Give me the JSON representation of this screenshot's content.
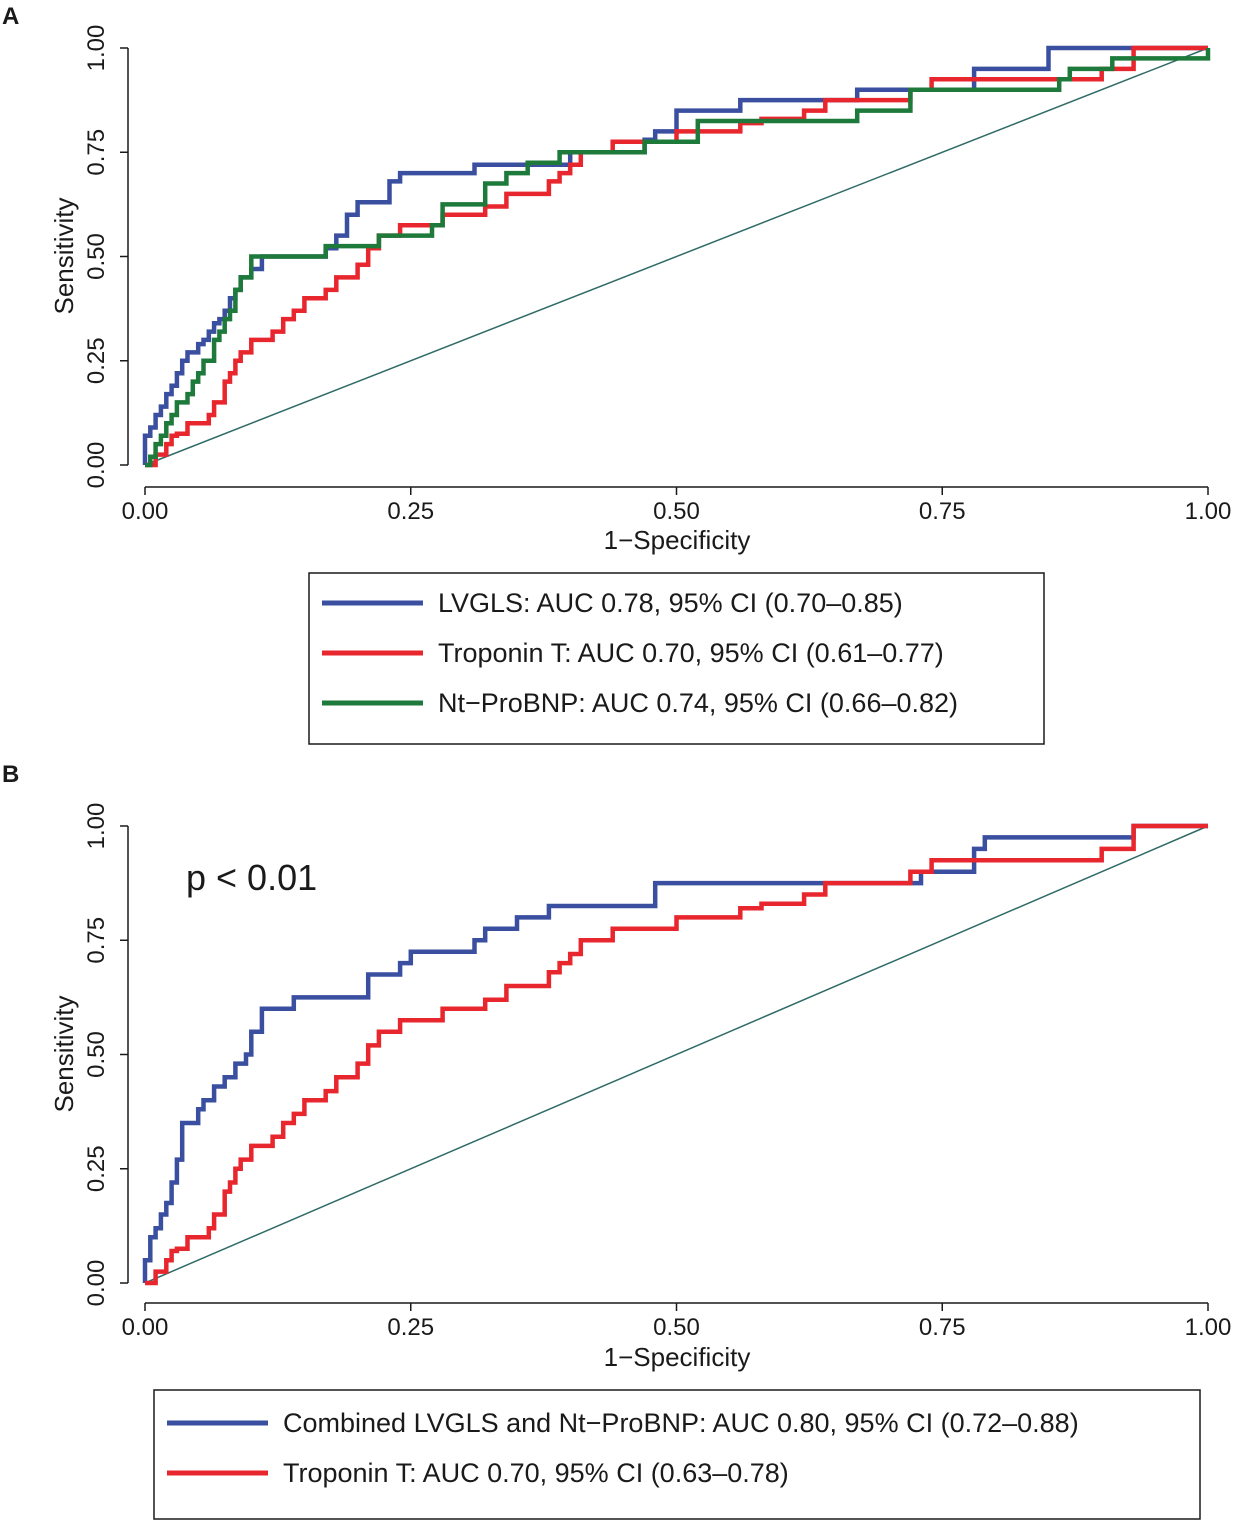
{
  "colors": {
    "blue": "#3a4fa0",
    "red": "#e8262d",
    "green": "#1d7a3a",
    "diagonal": "#2f6b67",
    "axis": "#1a1a1a"
  },
  "chart_data": [
    {
      "type": "line",
      "panel_label": "A",
      "title": "",
      "xlabel": "1−Specificity",
      "ylabel": "Sensitivity",
      "xlim": [
        0,
        1
      ],
      "ylim": [
        0,
        1
      ],
      "xticks": [
        "0.00",
        "0.25",
        "0.50",
        "0.75",
        "1.00"
      ],
      "yticks": [
        "0.00",
        "0.25",
        "0.50",
        "0.75",
        "1.00"
      ],
      "xtick_values": [
        0,
        0.25,
        0.5,
        0.75,
        1
      ],
      "ytick_values": [
        0,
        0.25,
        0.5,
        0.75,
        1
      ],
      "annotation": "",
      "legend_position": "below",
      "reference_line": [
        [
          0,
          0
        ],
        [
          1,
          1
        ]
      ],
      "series": [
        {
          "name": "LVGLS: AUC 0.78, 95% CI (0.70–0.85)",
          "color_key": "blue",
          "x": [
            0,
            0,
            0.005,
            0.005,
            0.01,
            0.015,
            0.02,
            0.025,
            0.03,
            0.035,
            0.04,
            0.045,
            0.05,
            0.055,
            0.06,
            0.065,
            0.07,
            0.075,
            0.08,
            0.085,
            0.09,
            0.1,
            0.11,
            0.12,
            0.17,
            0.18,
            0.19,
            0.2,
            0.21,
            0.23,
            0.24,
            0.3,
            0.31,
            0.38,
            0.4,
            0.47,
            0.48,
            0.5,
            0.54,
            0.56,
            0.66,
            0.67,
            0.76,
            0.78,
            0.85,
            0.85,
            0.9,
            1
          ],
          "y": [
            0,
            0.07,
            0.07,
            0.09,
            0.12,
            0.14,
            0.17,
            0.19,
            0.22,
            0.25,
            0.27,
            0.27,
            0.29,
            0.3,
            0.32,
            0.34,
            0.35,
            0.37,
            0.4,
            0.42,
            0.45,
            0.47,
            0.5,
            0.5,
            0.52,
            0.55,
            0.6,
            0.63,
            0.63,
            0.68,
            0.7,
            0.7,
            0.72,
            0.72,
            0.75,
            0.78,
            0.8,
            0.85,
            0.85,
            0.875,
            0.875,
            0.9,
            0.9,
            0.95,
            0.98,
            1,
            1,
            1
          ]
        },
        {
          "name": "Troponin T: AUC 0.70, 95% CI (0.61–0.77)",
          "color_key": "red",
          "x": [
            0,
            0.01,
            0.02,
            0.025,
            0.03,
            0.04,
            0.05,
            0.06,
            0.065,
            0.07,
            0.075,
            0.08,
            0.085,
            0.09,
            0.1,
            0.11,
            0.12,
            0.13,
            0.14,
            0.15,
            0.16,
            0.17,
            0.18,
            0.19,
            0.2,
            0.21,
            0.22,
            0.24,
            0.26,
            0.28,
            0.3,
            0.32,
            0.34,
            0.37,
            0.38,
            0.39,
            0.4,
            0.41,
            0.42,
            0.44,
            0.46,
            0.5,
            0.52,
            0.56,
            0.58,
            0.62,
            0.64,
            0.68,
            0.72,
            0.74,
            0.76,
            0.8,
            0.84,
            0.9,
            0.93,
            1
          ],
          "y": [
            0,
            0.025,
            0.05,
            0.07,
            0.075,
            0.1,
            0.1,
            0.12,
            0.15,
            0.15,
            0.2,
            0.22,
            0.25,
            0.27,
            0.3,
            0.3,
            0.32,
            0.35,
            0.37,
            0.4,
            0.4,
            0.42,
            0.45,
            0.45,
            0.48,
            0.52,
            0.55,
            0.575,
            0.575,
            0.6,
            0.6,
            0.62,
            0.65,
            0.65,
            0.68,
            0.7,
            0.72,
            0.75,
            0.75,
            0.775,
            0.775,
            0.8,
            0.8,
            0.82,
            0.83,
            0.85,
            0.875,
            0.875,
            0.9,
            0.925,
            0.925,
            0.925,
            0.925,
            0.95,
            1,
            1
          ]
        },
        {
          "name": "Nt−ProBNP: AUC 0.74, 95% CI (0.66–0.82)",
          "color_key": "green",
          "x": [
            0,
            0.005,
            0.01,
            0.015,
            0.02,
            0.025,
            0.03,
            0.04,
            0.045,
            0.05,
            0.055,
            0.06,
            0.065,
            0.07,
            0.075,
            0.08,
            0.085,
            0.09,
            0.1,
            0.17,
            0.21,
            0.22,
            0.27,
            0.28,
            0.31,
            0.32,
            0.34,
            0.36,
            0.38,
            0.39,
            0.43,
            0.47,
            0.48,
            0.52,
            0.66,
            0.67,
            0.72,
            0.86,
            0.87,
            0.91,
            1
          ],
          "y": [
            0,
            0.02,
            0.05,
            0.07,
            0.1,
            0.12,
            0.15,
            0.17,
            0.2,
            0.22,
            0.25,
            0.25,
            0.3,
            0.32,
            0.35,
            0.37,
            0.42,
            0.45,
            0.5,
            0.525,
            0.525,
            0.55,
            0.575,
            0.625,
            0.625,
            0.675,
            0.7,
            0.725,
            0.725,
            0.75,
            0.75,
            0.775,
            0.775,
            0.825,
            0.825,
            0.85,
            0.9,
            0.925,
            0.95,
            0.975,
            1
          ]
        }
      ]
    },
    {
      "type": "line",
      "panel_label": "B",
      "title": "",
      "xlabel": "1−Specificity",
      "ylabel": "Sensitivity",
      "xlim": [
        0,
        1
      ],
      "ylim": [
        0,
        1
      ],
      "xticks": [
        "0.00",
        "0.25",
        "0.50",
        "0.75",
        "1.00"
      ],
      "yticks": [
        "0.00",
        "0.25",
        "0.50",
        "0.75",
        "1.00"
      ],
      "xtick_values": [
        0,
        0.25,
        0.5,
        0.75,
        1
      ],
      "ytick_values": [
        0,
        0.25,
        0.5,
        0.75,
        1
      ],
      "annotation": "p < 0.01",
      "legend_position": "below",
      "reference_line": [
        [
          0,
          0
        ],
        [
          1,
          1
        ]
      ],
      "series": [
        {
          "name": "Combined LVGLS and Nt−ProBNP: AUC 0.80, 95% CI (0.72–0.88)",
          "color_key": "blue",
          "x": [
            0,
            0,
            0.005,
            0.005,
            0.01,
            0.015,
            0.02,
            0.025,
            0.03,
            0.035,
            0.045,
            0.05,
            0.055,
            0.065,
            0.075,
            0.085,
            0.095,
            0.1,
            0.11,
            0.14,
            0.2,
            0.21,
            0.24,
            0.25,
            0.31,
            0.32,
            0.35,
            0.36,
            0.38,
            0.39,
            0.48,
            0.48,
            0.72,
            0.73,
            0.78,
            0.79,
            0.93,
            0.93,
            1
          ],
          "y": [
            0,
            0.05,
            0.05,
            0.1,
            0.12,
            0.15,
            0.175,
            0.22,
            0.27,
            0.35,
            0.35,
            0.38,
            0.4,
            0.43,
            0.45,
            0.48,
            0.5,
            0.55,
            0.6,
            0.625,
            0.625,
            0.675,
            0.7,
            0.725,
            0.75,
            0.775,
            0.8,
            0.8,
            0.825,
            0.825,
            0.85,
            0.875,
            0.875,
            0.9,
            0.95,
            0.975,
            0.975,
            1,
            1
          ]
        },
        {
          "name": "Troponin T: AUC 0.70, 95% CI (0.63–0.78)",
          "color_key": "red",
          "x": [
            0,
            0.01,
            0.02,
            0.025,
            0.03,
            0.04,
            0.05,
            0.06,
            0.065,
            0.07,
            0.075,
            0.08,
            0.085,
            0.09,
            0.1,
            0.11,
            0.12,
            0.13,
            0.14,
            0.15,
            0.16,
            0.17,
            0.18,
            0.19,
            0.2,
            0.21,
            0.22,
            0.24,
            0.26,
            0.28,
            0.3,
            0.32,
            0.34,
            0.37,
            0.38,
            0.39,
            0.4,
            0.41,
            0.42,
            0.44,
            0.46,
            0.5,
            0.52,
            0.56,
            0.58,
            0.62,
            0.64,
            0.68,
            0.72,
            0.74,
            0.76,
            0.8,
            0.84,
            0.9,
            0.93,
            1
          ],
          "y": [
            0,
            0.025,
            0.05,
            0.07,
            0.075,
            0.1,
            0.1,
            0.12,
            0.15,
            0.15,
            0.2,
            0.22,
            0.25,
            0.27,
            0.3,
            0.3,
            0.32,
            0.35,
            0.37,
            0.4,
            0.4,
            0.42,
            0.45,
            0.45,
            0.48,
            0.52,
            0.55,
            0.575,
            0.575,
            0.6,
            0.6,
            0.62,
            0.65,
            0.65,
            0.68,
            0.7,
            0.72,
            0.75,
            0.75,
            0.775,
            0.775,
            0.8,
            0.8,
            0.82,
            0.83,
            0.85,
            0.875,
            0.875,
            0.9,
            0.925,
            0.925,
            0.925,
            0.925,
            0.95,
            1,
            1
          ]
        }
      ]
    }
  ]
}
